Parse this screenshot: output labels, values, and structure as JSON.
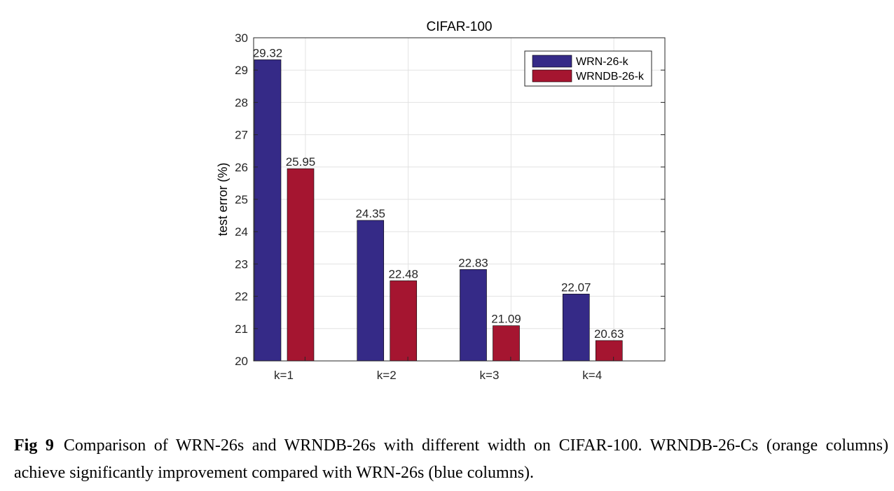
{
  "caption": {
    "label": "Fig 9",
    "text": "Comparison of WRN-26s and WRNDB-26s with different width on CIFAR-100.  WRNDB-26-Cs (orange columns) achieve significantly improvement compared with WRN-26s (blue columns)."
  },
  "chart_data": {
    "type": "bar",
    "title": "CIFAR-100",
    "xlabel": "",
    "ylabel": "test error (%)",
    "categories": [
      "k=1",
      "k=2",
      "k=3",
      "k=4"
    ],
    "series": [
      {
        "name": "WRN-26-k",
        "values": [
          29.32,
          24.35,
          22.83,
          22.07
        ],
        "color": "#352a87"
      },
      {
        "name": "WRNDB-26-k",
        "values": [
          25.95,
          22.48,
          21.09,
          20.63
        ],
        "color": "#a51530"
      }
    ],
    "data_labels": [
      [
        "29.32",
        "24.35",
        "22.83",
        "22.07"
      ],
      [
        "25.95",
        "22.48",
        "21.09",
        "20.63"
      ]
    ],
    "ylim": [
      20,
      30
    ],
    "yticks": [
      20,
      21,
      22,
      23,
      24,
      25,
      26,
      27,
      28,
      29,
      30
    ],
    "grid": true,
    "legend_position": "top-right"
  }
}
